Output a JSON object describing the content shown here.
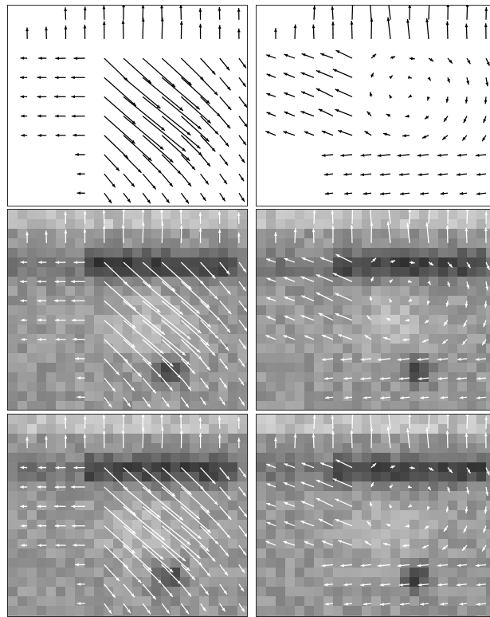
{
  "figure": {
    "grid": {
      "rows": 3,
      "columns": 2
    },
    "panels": [
      {
        "id": "r0c0",
        "field": "A",
        "background": "none",
        "arrow_color": "#000000"
      },
      {
        "id": "r0c1",
        "field": "B",
        "background": "none",
        "arrow_color": "#000000"
      },
      {
        "id": "r1c0",
        "field": "A",
        "background": "grayscale-image",
        "arrow_color": "#ffffff"
      },
      {
        "id": "r1c1",
        "field": "B",
        "background": "grayscale-image",
        "arrow_color": "#ffffff"
      },
      {
        "id": "r2c0",
        "field": "A",
        "background": "grayscale-image",
        "arrow_color": "#ffffff"
      },
      {
        "id": "r2c1",
        "field": "B",
        "background": "grayscale-image",
        "arrow_color": "#ffffff"
      }
    ]
  }
}
